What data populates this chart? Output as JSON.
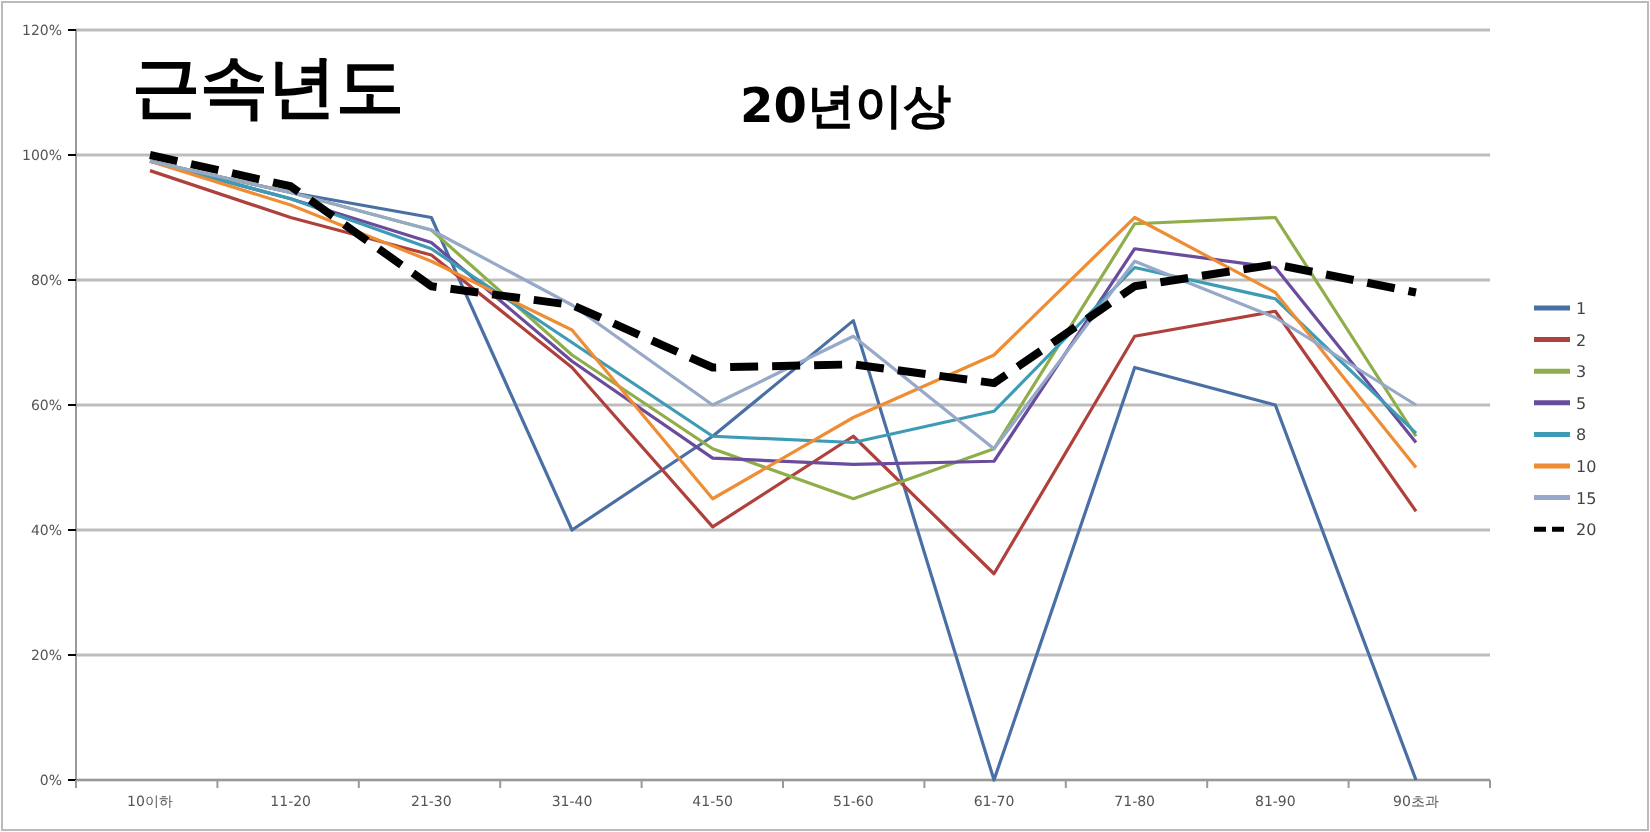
{
  "chart_data": {
    "type": "line",
    "title": "근속년도",
    "subtitle": "20년이상",
    "categories": [
      "10이하",
      "11-20",
      "21-30",
      "31-40",
      "41-50",
      "51-60",
      "61-70",
      "71-80",
      "81-90",
      "90초과"
    ],
    "ylim": [
      0,
      120
    ],
    "yticks": [
      {
        "value": 0,
        "label": "0%"
      },
      {
        "value": 20,
        "label": "20%"
      },
      {
        "value": 40,
        "label": "40%"
      },
      {
        "value": 60,
        "label": "60%"
      },
      {
        "value": 80,
        "label": "80%"
      },
      {
        "value": 100,
        "label": "100%"
      },
      {
        "value": 120,
        "label": "120%"
      }
    ],
    "grid": "y",
    "legend": "right",
    "marker": "none",
    "series": [
      {
        "name": "1",
        "color": "#4a6fa5",
        "values": [
          99,
          94,
          90,
          40,
          55,
          73.5,
          0,
          66,
          60,
          0
        ]
      },
      {
        "name": "2",
        "color": "#b0403c",
        "values": [
          97.5,
          90,
          84,
          66,
          40.5,
          55,
          33,
          71,
          75,
          43
        ]
      },
      {
        "name": "3",
        "color": "#8fae4a",
        "values": [
          99,
          94,
          88,
          68,
          53,
          45,
          53,
          89,
          90,
          55
        ]
      },
      {
        "name": "5",
        "color": "#6a4c9c",
        "values": [
          99,
          93,
          86,
          67,
          51.5,
          50.5,
          51,
          85,
          82,
          54
        ]
      },
      {
        "name": "8",
        "color": "#3e9bb5",
        "values": [
          99,
          93,
          85,
          70,
          55,
          54,
          59,
          82,
          77,
          55.5
        ]
      },
      {
        "name": "10",
        "color": "#ee8d33",
        "values": [
          99,
          92,
          83,
          72,
          45,
          58,
          68,
          90,
          78,
          50
        ]
      },
      {
        "name": "15",
        "color": "#96a9c9",
        "values": [
          99,
          94,
          88,
          76,
          60,
          71,
          53,
          83,
          74,
          60
        ]
      },
      {
        "name": "20",
        "color": "#000000",
        "line_style": "dashed",
        "values": [
          100,
          95,
          79,
          76,
          66,
          66.5,
          63.5,
          79,
          82.5,
          78
        ]
      }
    ]
  }
}
